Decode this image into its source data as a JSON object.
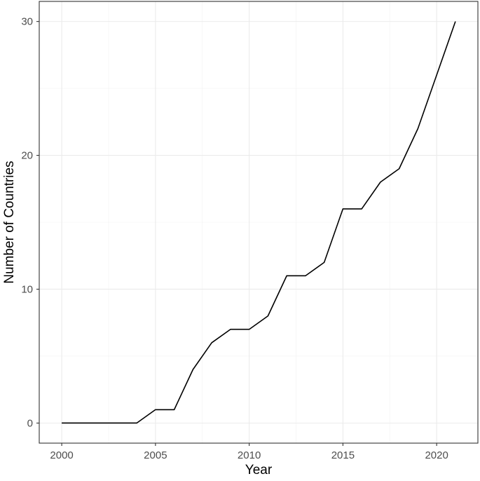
{
  "chart_data": {
    "type": "line",
    "title": "",
    "xlabel": "Year",
    "ylabel": "Number of Countries",
    "xlim": [
      1998.8,
      2022.2
    ],
    "ylim": [
      -1.5,
      31.5
    ],
    "x_ticks": [
      2000,
      2005,
      2010,
      2015,
      2020
    ],
    "y_ticks": [
      0,
      10,
      20,
      30
    ],
    "x_tick_labels": [
      "2000",
      "2005",
      "2010",
      "2015",
      "2020"
    ],
    "y_tick_labels": [
      "0",
      "10",
      "20",
      "30"
    ],
    "grid": true,
    "legend": "none",
    "series": [
      {
        "color": "#000000",
        "x": [
          2000,
          2001,
          2002,
          2003,
          2004,
          2005,
          2006,
          2007,
          2008,
          2009,
          2010,
          2011,
          2012,
          2013,
          2014,
          2015,
          2016,
          2017,
          2018,
          2019,
          2020,
          2021
        ],
        "y": [
          0,
          0,
          0,
          0,
          0,
          1,
          1,
          4,
          6,
          7,
          7,
          8,
          11,
          11,
          12,
          16,
          16,
          18,
          19,
          22,
          26,
          30
        ]
      }
    ]
  }
}
